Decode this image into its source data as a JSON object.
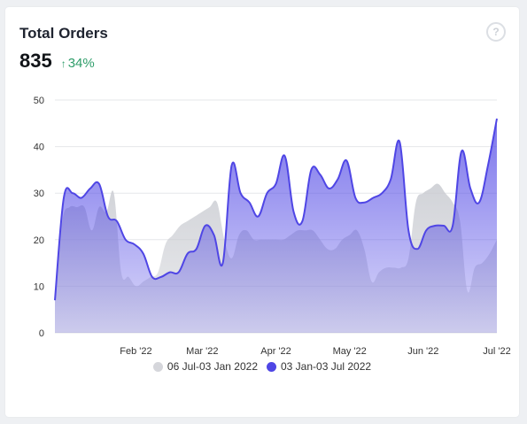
{
  "card": {
    "title": "Total Orders",
    "value": "835",
    "change_arrow": "↑",
    "change": "34%",
    "help_icon": "?"
  },
  "colors": {
    "primary": "#4f46e5",
    "previous": "#d5d6db",
    "positive": "#2f9d6a"
  },
  "chart_data": {
    "type": "area",
    "ylim": [
      0,
      50
    ],
    "yticks": [
      0,
      10,
      20,
      30,
      40,
      50
    ],
    "grid": true,
    "legend_position": "bottom",
    "x_tick_labels": [
      "Feb '22",
      "Mar '22",
      "Apr '22",
      "May '22",
      "Jun '22",
      "Jul '22"
    ],
    "x_tick_index": [
      11,
      20,
      30,
      40,
      50,
      60
    ],
    "series": [
      {
        "name": "06 Jul-03 Jan 2022",
        "color": "#d5d6db",
        "values": [
          7,
          24,
          27,
          27,
          27,
          22,
          27,
          26,
          30,
          13,
          12,
          10,
          11,
          12,
          13,
          19,
          21,
          23,
          24,
          25,
          26,
          27,
          28,
          20,
          16,
          21,
          22,
          20,
          20,
          20,
          20,
          20,
          21,
          22,
          22,
          22,
          20,
          18,
          18,
          20,
          21,
          22,
          18,
          11,
          13,
          14,
          14,
          14,
          16,
          28,
          30,
          31,
          32,
          30,
          28,
          24,
          9,
          14,
          15,
          17,
          20
        ]
      },
      {
        "name": "03 Jan-03 Jul 2022",
        "color": "#4f46e5",
        "values": [
          7,
          29,
          30,
          29,
          31,
          32,
          25,
          24,
          20,
          19,
          17,
          12,
          12,
          13,
          13,
          17,
          18,
          23,
          21,
          15,
          36,
          30,
          28,
          25,
          30,
          32,
          38,
          26,
          24,
          35,
          34,
          31,
          33,
          37,
          29,
          28,
          29,
          30,
          33,
          41,
          22,
          18,
          22,
          23,
          23,
          23,
          39,
          31,
          28,
          36,
          46
        ]
      }
    ]
  }
}
